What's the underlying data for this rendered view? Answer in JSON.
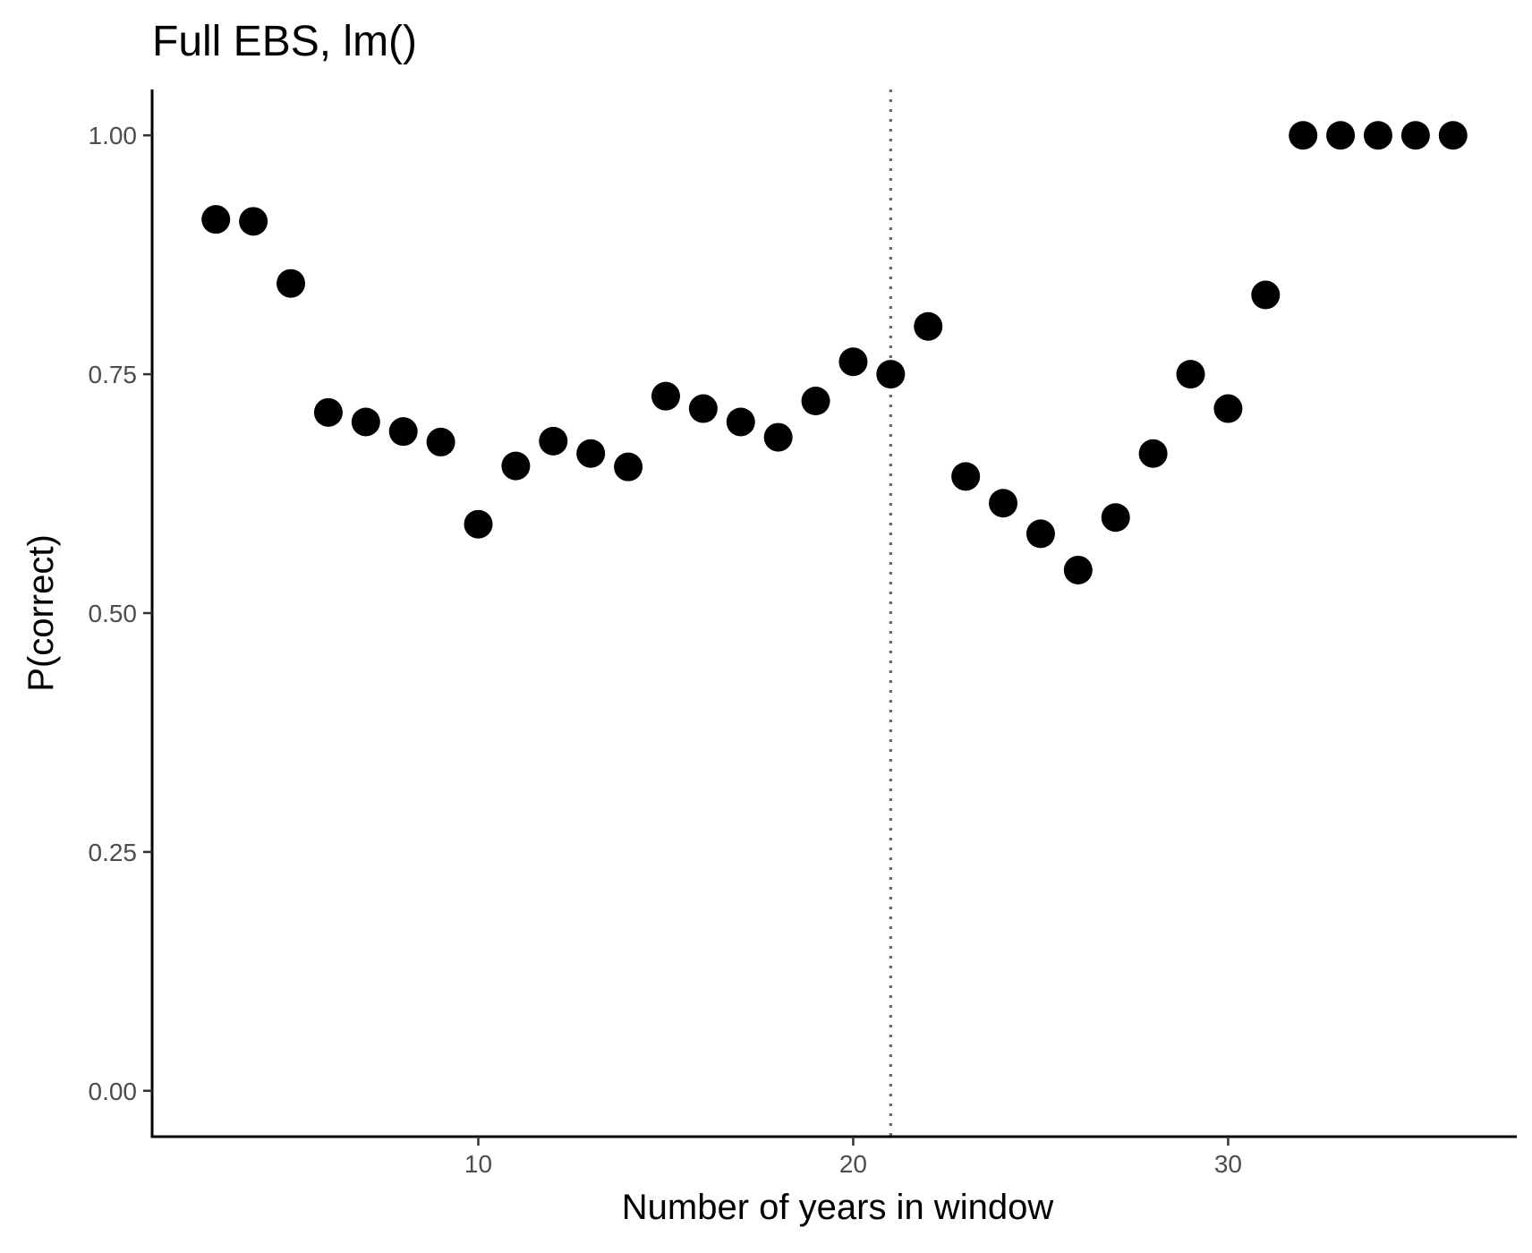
{
  "chart_data": {
    "type": "scatter",
    "title": "Full EBS, lm()",
    "xlabel": "Number of years in window",
    "ylabel": "P(correct)",
    "xlim": [
      1.3,
      37.7
    ],
    "ylim": [
      -0.048,
      1.048
    ],
    "x_ticks": [
      10,
      20,
      30
    ],
    "x_tick_labels": [
      "10",
      "20",
      "30"
    ],
    "y_ticks": [
      0,
      0.25,
      0.5,
      0.75,
      1
    ],
    "y_tick_labels": [
      "0.00",
      "0.25",
      "0.50",
      "0.75",
      "1.00"
    ],
    "vline": {
      "x": 21,
      "style": "dotted",
      "color": "#666666"
    },
    "point_color": "#000000",
    "grid": false,
    "points": [
      {
        "x": 3,
        "y": 0.912
      },
      {
        "x": 4,
        "y": 0.91
      },
      {
        "x": 5,
        "y": 0.845
      },
      {
        "x": 6,
        "y": 0.71
      },
      {
        "x": 7,
        "y": 0.7
      },
      {
        "x": 8,
        "y": 0.69
      },
      {
        "x": 9,
        "y": 0.679
      },
      {
        "x": 10,
        "y": 0.593
      },
      {
        "x": 11,
        "y": 0.654
      },
      {
        "x": 12,
        "y": 0.68
      },
      {
        "x": 13,
        "y": 0.667
      },
      {
        "x": 14,
        "y": 0.653
      },
      {
        "x": 15,
        "y": 0.727
      },
      {
        "x": 16,
        "y": 0.714
      },
      {
        "x": 17,
        "y": 0.7
      },
      {
        "x": 18,
        "y": 0.684
      },
      {
        "x": 19,
        "y": 0.722
      },
      {
        "x": 20,
        "y": 0.763
      },
      {
        "x": 21,
        "y": 0.75
      },
      {
        "x": 22,
        "y": 0.8
      },
      {
        "x": 23,
        "y": 0.643
      },
      {
        "x": 24,
        "y": 0.615
      },
      {
        "x": 25,
        "y": 0.583
      },
      {
        "x": 26,
        "y": 0.545
      },
      {
        "x": 27,
        "y": 0.6
      },
      {
        "x": 28,
        "y": 0.667
      },
      {
        "x": 29,
        "y": 0.75
      },
      {
        "x": 30,
        "y": 0.714
      },
      {
        "x": 31,
        "y": 0.833
      },
      {
        "x": 32,
        "y": 1.0
      },
      {
        "x": 33,
        "y": 1.0
      },
      {
        "x": 34,
        "y": 1.0
      },
      {
        "x": 35,
        "y": 1.0
      },
      {
        "x": 36,
        "y": 1.0
      }
    ]
  }
}
